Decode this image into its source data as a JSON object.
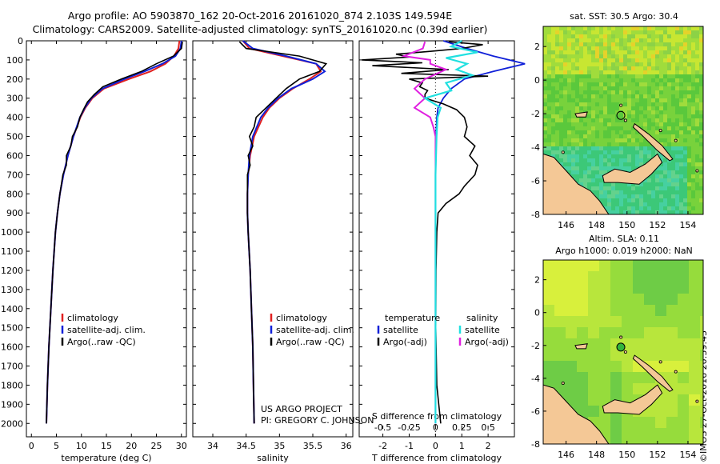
{
  "title": {
    "line1": "Argo profile: AO 5903870_162 20-Oct-2016 20161020_874 2.103S 149.594E",
    "line2": "Climatology: CARS2009. Satellite-adjusted climatology: synTS_20161020.nc (0.39d earlier)"
  },
  "colors": {
    "climatology": "#e02020",
    "satellite": "#1020d8",
    "argo": "#000000",
    "sat_salinity": "#20e0e0",
    "argo_salinity_adj": "#e020e0",
    "land": "#f4c896"
  },
  "depth_axis": {
    "ticks": [
      0,
      100,
      200,
      300,
      400,
      500,
      600,
      700,
      800,
      900,
      1000,
      1100,
      1200,
      1300,
      1400,
      1500,
      1600,
      1700,
      1800,
      1900,
      2000
    ],
    "ylim": [
      0,
      2070
    ]
  },
  "legend": {
    "climatology": "climatology",
    "satellite": "satellite-adj. clim.",
    "argo": "Argo(..raw -QC)"
  },
  "diff_legend": {
    "temperature": "temperature",
    "salinity": "salinity",
    "satellite": "satellite",
    "argo_adj": "Argo(-adj)"
  },
  "credits": {
    "project": "US ARGO PROJECT",
    "pi": "PI: GREGORY C. JOHNSON"
  },
  "chart_data": [
    {
      "type": "line",
      "name": "temperature",
      "xlabel": "temperature (deg C)",
      "xlim": [
        -1,
        31
      ],
      "xticks": [
        0,
        5,
        10,
        15,
        20,
        25,
        30
      ],
      "series": [
        {
          "name": "climatology",
          "depth": [
            0,
            40,
            80,
            120,
            160,
            200,
            250,
            300,
            350,
            400,
            500,
            600,
            700,
            800,
            900,
            1000,
            1200,
            1400,
            1600,
            1800,
            2000
          ],
          "values": [
            29.6,
            29.4,
            28.5,
            26.8,
            23.8,
            19.5,
            14.5,
            12.2,
            10.8,
            9.8,
            8.4,
            7.3,
            6.4,
            5.7,
            5.2,
            4.8,
            4.3,
            3.9,
            3.5,
            3.2,
            3.0
          ]
        },
        {
          "name": "satellite-adj. clim.",
          "depth": [
            0,
            40,
            80,
            120,
            160,
            200,
            250,
            300,
            350,
            400,
            500,
            600,
            700,
            800,
            900,
            1000,
            1200,
            1400,
            1600,
            1800,
            2000
          ],
          "values": [
            30.0,
            29.8,
            28.8,
            26.2,
            22.6,
            18.6,
            14.2,
            12.0,
            10.7,
            9.7,
            8.4,
            7.3,
            6.4,
            5.7,
            5.2,
            4.8,
            4.3,
            3.9,
            3.5,
            3.2,
            3.0
          ]
        },
        {
          "name": "Argo(..raw -QC)",
          "depth": [
            5,
            40,
            80,
            120,
            160,
            200,
            240,
            280,
            320,
            360,
            400,
            450,
            500,
            550,
            600,
            650,
            700,
            800,
            900,
            1000,
            1200,
            1400,
            1600,
            1800,
            2000
          ],
          "values": [
            30.2,
            30.0,
            28.4,
            25.0,
            22.0,
            18.0,
            14.3,
            12.6,
            11.2,
            10.4,
            9.7,
            9.2,
            8.2,
            7.9,
            7.0,
            7.0,
            6.3,
            5.7,
            5.2,
            4.8,
            4.3,
            3.9,
            3.5,
            3.2,
            3.0
          ]
        }
      ]
    },
    {
      "type": "line",
      "name": "salinity",
      "xlabel": "salinity",
      "xlim": [
        33.7,
        36.1
      ],
      "xticks": [
        34,
        34.5,
        35,
        35.5,
        36
      ],
      "series": [
        {
          "name": "climatology",
          "depth": [
            0,
            40,
            80,
            120,
            160,
            200,
            250,
            300,
            350,
            400,
            500,
            600,
            700,
            800,
            900,
            1000,
            1200,
            1400,
            1600,
            1800,
            2000
          ],
          "values": [
            34.45,
            34.55,
            35.05,
            35.55,
            35.62,
            35.45,
            35.2,
            35.0,
            34.85,
            34.75,
            34.62,
            34.56,
            34.53,
            34.52,
            34.52,
            34.53,
            34.56,
            34.58,
            34.6,
            34.61,
            34.62
          ]
        },
        {
          "name": "satellite-adj. clim.",
          "depth": [
            0,
            40,
            80,
            120,
            160,
            200,
            250,
            300,
            350,
            400,
            500,
            600,
            700,
            800,
            900,
            1000,
            1200,
            1400,
            1600,
            1800,
            2000
          ],
          "values": [
            34.45,
            34.6,
            35.1,
            35.55,
            35.68,
            35.5,
            35.18,
            34.98,
            34.83,
            34.72,
            34.6,
            34.55,
            34.53,
            34.52,
            34.52,
            34.53,
            34.56,
            34.58,
            34.6,
            34.61,
            34.62
          ]
        },
        {
          "name": "Argo(..raw -QC)",
          "depth": [
            5,
            40,
            80,
            120,
            160,
            200,
            250,
            300,
            350,
            400,
            450,
            500,
            550,
            600,
            650,
            700,
            800,
            900,
            1000,
            1200,
            1400,
            1600,
            1800,
            2000
          ],
          "values": [
            34.4,
            34.5,
            35.3,
            35.7,
            35.6,
            35.3,
            35.1,
            34.95,
            34.8,
            34.65,
            34.62,
            34.55,
            34.6,
            34.53,
            34.56,
            34.52,
            34.52,
            34.52,
            34.53,
            34.56,
            34.58,
            34.6,
            34.61,
            34.62
          ]
        }
      ]
    },
    {
      "type": "line",
      "name": "difference",
      "xlabel": "T difference from climatology",
      "xlabel_top": "S difference from climatology",
      "xlim": [
        -2.9,
        3.0
      ],
      "xticks": [
        -2,
        -1,
        0,
        1,
        2
      ],
      "xticks_top": [
        -0.5,
        -0.25,
        0,
        0.25,
        0.5
      ],
      "xticks_top_labels": [
        "-0.5",
        "-0.25",
        "0",
        "0.25",
        "0.5"
      ],
      "series": [
        {
          "name": "T satellite",
          "depth": [
            0,
            40,
            80,
            120,
            160,
            200,
            250,
            300,
            350,
            400,
            500,
            600,
            800,
            1000,
            1500,
            2000
          ],
          "values": [
            0.3,
            1.2,
            2.2,
            3.4,
            2.2,
            1.1,
            0.6,
            0.3,
            0.1,
            0.05,
            0.02,
            0.01,
            0,
            0,
            0,
            0
          ]
        },
        {
          "name": "T Argo(-adj)",
          "depth": [
            5,
            20,
            40,
            55,
            70,
            85,
            100,
            115,
            130,
            150,
            170,
            185,
            200,
            220,
            240,
            260,
            280,
            300,
            330,
            360,
            400,
            450,
            500,
            550,
            600,
            650,
            700,
            760,
            800,
            850,
            900,
            1000,
            1200,
            1500,
            1800,
            2000
          ],
          "values": [
            0.5,
            1.8,
            1.0,
            -0.2,
            -1.5,
            -1.0,
            -2.8,
            -0.5,
            -2.4,
            0.5,
            -1.3,
            2.0,
            -1.0,
            -0.5,
            -0.6,
            -0.3,
            -0.4,
            -0.4,
            0.3,
            0.8,
            1.1,
            1.2,
            1.1,
            1.5,
            1.3,
            1.6,
            1.5,
            1.1,
            0.9,
            0.4,
            0.1,
            0.05,
            0.02,
            0.01,
            0.05,
            0.2
          ]
        },
        {
          "name": "S satellite",
          "depth": [
            0,
            30,
            60,
            90,
            120,
            150,
            180,
            220,
            260,
            300,
            350,
            400,
            500,
            700,
            1000,
            1500,
            2000
          ],
          "values": [
            0.25,
            0.15,
            0.4,
            0.1,
            0.3,
            0.2,
            0.35,
            0.1,
            0.15,
            -0.1,
            0.05,
            0.02,
            0.01,
            0,
            0,
            0,
            0
          ]
        },
        {
          "name": "S Argo(-adj)",
          "depth": [
            5,
            40,
            80,
            100,
            120,
            150,
            200,
            250,
            300,
            350,
            400,
            450,
            500,
            600,
            700,
            800,
            1000,
            1500,
            2000
          ],
          "values": [
            -0.1,
            -0.12,
            -0.3,
            -0.05,
            -0.05,
            0.1,
            -0.1,
            -0.2,
            -0.1,
            -0.2,
            -0.05,
            -0.02,
            0,
            0,
            0,
            0,
            0,
            0,
            0
          ]
        }
      ]
    },
    {
      "type": "heatmap",
      "name": "sst_map",
      "title": "sat. SST: 30.5 Argo: 30.4",
      "xticks": [
        146,
        148,
        150,
        152,
        154
      ],
      "yticks": [
        2,
        0,
        -2,
        -4,
        -6,
        -8
      ],
      "xlim": [
        144.5,
        155
      ],
      "ylim": [
        -8,
        3.2
      ],
      "marker": {
        "lon": 149.594,
        "lat": -2.103
      }
    },
    {
      "type": "heatmap",
      "name": "sla_map",
      "title": "Altim. SLA: 0.11",
      "subtitle": "Argo h1000: 0.019 h2000: NaN",
      "xticks": [
        146,
        148,
        150,
        152,
        154
      ],
      "yticks": [
        2,
        0,
        -2,
        -4,
        -6,
        -8
      ],
      "xlim": [
        144.5,
        155
      ],
      "ylim": [
        -8,
        3.2
      ],
      "marker": {
        "lon": 149.594,
        "lat": -2.103
      }
    }
  ],
  "timestamp": "©IMOS 27-Oct-2016 20:39:43"
}
